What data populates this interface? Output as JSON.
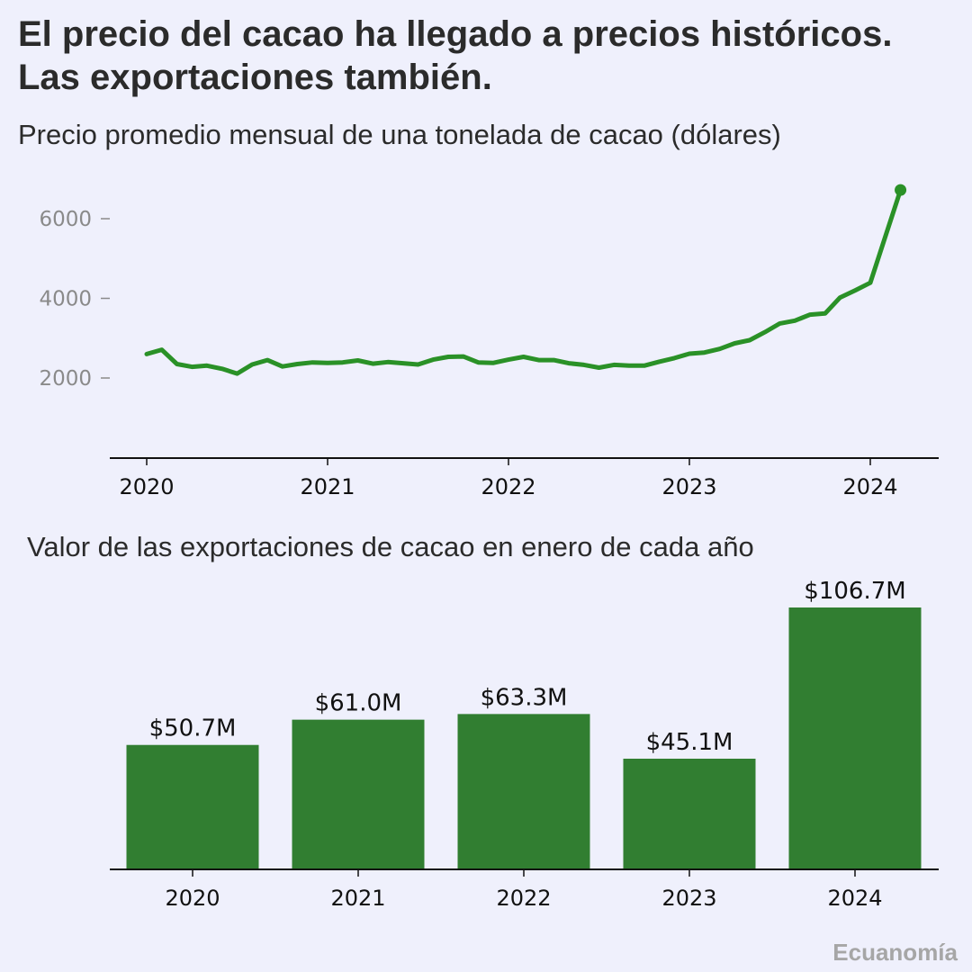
{
  "header": {
    "title": "El precio del cacao ha llegado a precios históricos. Las exportaciones también.",
    "subtitle_price": "Precio promedio mensual de una tonelada de cacao (dólares)",
    "subtitle_exports": "Valor de las exportaciones de cacao en enero de cada año"
  },
  "credit": "Ecuanomía",
  "colors": {
    "background": "#eff0fc",
    "line": "#2a9127",
    "bar": "#317e31",
    "axis": "#111111",
    "tick": "#8a8a8a"
  },
  "chart_data": [
    {
      "type": "line",
      "title": "Precio promedio mensual de una tonelada de cacao (dólares)",
      "xlabel": "",
      "ylabel": "",
      "x_ticks": [
        "2020",
        "2021",
        "2022",
        "2023",
        "2024"
      ],
      "y_ticks": [
        2000,
        4000,
        6000
      ],
      "xlim": [
        2020,
        2024.5
      ],
      "ylim": [
        0,
        7000
      ],
      "grid": false,
      "series": [
        {
          "name": "Precio",
          "x": [
            2020.0,
            2020.083,
            2020.167,
            2020.25,
            2020.333,
            2020.417,
            2020.5,
            2020.583,
            2020.667,
            2020.75,
            2020.833,
            2020.917,
            2021.0,
            2021.083,
            2021.167,
            2021.25,
            2021.333,
            2021.417,
            2021.5,
            2021.583,
            2021.667,
            2021.75,
            2021.833,
            2021.917,
            2022.0,
            2022.083,
            2022.167,
            2022.25,
            2022.333,
            2022.417,
            2022.5,
            2022.583,
            2022.667,
            2022.75,
            2022.833,
            2022.917,
            2023.0,
            2023.083,
            2023.167,
            2023.25,
            2023.333,
            2023.417,
            2023.5,
            2023.583,
            2023.667,
            2023.75,
            2023.833,
            2023.917,
            2024.0,
            2024.083,
            2024.167
          ],
          "values": [
            2600,
            2710,
            2350,
            2280,
            2310,
            2230,
            2110,
            2340,
            2450,
            2290,
            2350,
            2390,
            2380,
            2390,
            2440,
            2360,
            2400,
            2370,
            2340,
            2460,
            2530,
            2540,
            2390,
            2380,
            2460,
            2530,
            2450,
            2450,
            2370,
            2330,
            2260,
            2330,
            2310,
            2310,
            2410,
            2500,
            2610,
            2640,
            2730,
            2870,
            2950,
            3150,
            3370,
            3440,
            3590,
            3620,
            4020,
            4200,
            4390,
            5550,
            6720
          ]
        }
      ],
      "endpoint_marker": true
    },
    {
      "type": "bar",
      "title": "Valor de las exportaciones de cacao en enero de cada año",
      "categories": [
        "2020",
        "2021",
        "2022",
        "2023",
        "2024"
      ],
      "values": [
        50.7,
        61.0,
        63.3,
        45.1,
        106.7
      ],
      "data_labels": [
        "$50.7M",
        "$61.0M",
        "$63.3M",
        "$45.1M",
        "$106.7M"
      ],
      "unit": "millones de dólares",
      "xlabel": "",
      "ylabel": "",
      "ylim": [
        0,
        106.7
      ],
      "grid": false
    }
  ]
}
